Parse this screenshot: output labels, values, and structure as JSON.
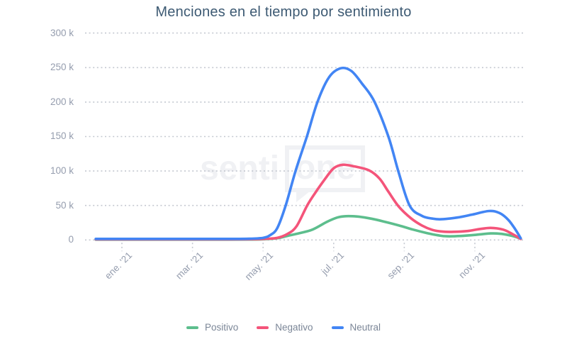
{
  "title": "Menciones en el tiempo por sentimiento",
  "watermark": {
    "prefix": "senti",
    "boxed": "one"
  },
  "colors": {
    "positive": "#5dbe8d",
    "negative": "#f4547a",
    "neutral": "#4285f4",
    "grid": "#c4c8d0",
    "axis_text": "#959dae",
    "title_text": "#3d5a73",
    "legend_text": "#7b8697",
    "watermark": "#f0f1f4",
    "background": "#ffffff"
  },
  "chart_data": {
    "type": "line",
    "title": "Menciones en el tiempo por sentimiento",
    "xlabel": "",
    "ylabel": "",
    "y_unit": "thousands of mentions (k)",
    "x_unit": "months relative to ene. '21 tick",
    "ylim": [
      0,
      300
    ],
    "xlim_months": [
      -0.74,
      11.3
    ],
    "grid": "horizontal-dotted",
    "legend_position": "bottom-center",
    "y_ticks": [
      {
        "label": "300 k",
        "value": 300
      },
      {
        "label": "250 k",
        "value": 250
      },
      {
        "label": "200 k",
        "value": 200
      },
      {
        "label": "150 k",
        "value": 150
      },
      {
        "label": "100 k",
        "value": 100
      },
      {
        "label": "50 k",
        "value": 50
      },
      {
        "label": "0",
        "value": 0
      }
    ],
    "x_ticks": [
      {
        "label": "ene. '21",
        "m": 0
      },
      {
        "label": "mar. '21",
        "m": 2
      },
      {
        "label": "may. '21",
        "m": 4
      },
      {
        "label": "jul. '21",
        "m": 6
      },
      {
        "label": "sep. '21",
        "m": 8
      },
      {
        "label": "nov. '21",
        "m": 10
      }
    ],
    "series": [
      {
        "name": "Positivo",
        "color": "#5dbe8d",
        "peak": {
          "month": "jul. '21",
          "value_k": 34.5
        },
        "points": [
          [
            -0.74,
            0.5
          ],
          [
            0,
            0.5
          ],
          [
            1,
            0.5
          ],
          [
            2,
            0.5
          ],
          [
            3,
            0.5
          ],
          [
            3.6,
            0.6
          ],
          [
            4.0,
            1
          ],
          [
            4.4,
            2.5
          ],
          [
            4.7,
            6
          ],
          [
            5.0,
            9.5
          ],
          [
            5.4,
            15
          ],
          [
            5.8,
            26
          ],
          [
            6.1,
            32.5
          ],
          [
            6.35,
            34.5
          ],
          [
            6.65,
            34
          ],
          [
            7.0,
            31.5
          ],
          [
            7.4,
            27
          ],
          [
            7.85,
            21
          ],
          [
            8.25,
            15
          ],
          [
            8.65,
            9.8
          ],
          [
            8.95,
            6.8
          ],
          [
            9.2,
            5.3
          ],
          [
            9.6,
            5.8
          ],
          [
            10.0,
            7.3
          ],
          [
            10.45,
            9.5
          ],
          [
            10.75,
            8.8
          ],
          [
            11.05,
            6
          ],
          [
            11.3,
            2
          ]
        ]
      },
      {
        "name": "Negativo",
        "color": "#f4547a",
        "peak": {
          "month": "jul. '21",
          "value_k": 109
        },
        "points": [
          [
            -0.74,
            0.9
          ],
          [
            0,
            0.9
          ],
          [
            1,
            0.9
          ],
          [
            2,
            0.9
          ],
          [
            3,
            0.9
          ],
          [
            3.6,
            1
          ],
          [
            4.0,
            1.5
          ],
          [
            4.4,
            3
          ],
          [
            4.7,
            9
          ],
          [
            4.95,
            20
          ],
          [
            5.25,
            50
          ],
          [
            5.5,
            70
          ],
          [
            5.75,
            88
          ],
          [
            6.0,
            104
          ],
          [
            6.26,
            109
          ],
          [
            6.6,
            106.5
          ],
          [
            7.0,
            101
          ],
          [
            7.3,
            89
          ],
          [
            7.55,
            70
          ],
          [
            7.85,
            48
          ],
          [
            8.2,
            31
          ],
          [
            8.5,
            21
          ],
          [
            8.8,
            14.5
          ],
          [
            9.1,
            12
          ],
          [
            9.4,
            11.8
          ],
          [
            9.8,
            13
          ],
          [
            10.1,
            15.5
          ],
          [
            10.45,
            17.5
          ],
          [
            10.8,
            15
          ],
          [
            11.05,
            9
          ],
          [
            11.3,
            1.5
          ]
        ]
      },
      {
        "name": "Neutral",
        "color": "#4285f4",
        "peak": {
          "month": "jul. '21",
          "value_k": 249
        },
        "points": [
          [
            -0.74,
            1.5
          ],
          [
            0,
            1.5
          ],
          [
            1,
            1.5
          ],
          [
            2,
            1.5
          ],
          [
            3,
            1.5
          ],
          [
            3.6,
            1.7
          ],
          [
            4.0,
            3
          ],
          [
            4.2,
            7
          ],
          [
            4.4,
            17
          ],
          [
            4.64,
            50
          ],
          [
            4.92,
            100
          ],
          [
            5.24,
            150
          ],
          [
            5.54,
            200
          ],
          [
            5.87,
            236
          ],
          [
            6.2,
            249
          ],
          [
            6.5,
            245
          ],
          [
            6.8,
            227
          ],
          [
            7.15,
            201
          ],
          [
            7.55,
            150
          ],
          [
            7.83,
            100
          ],
          [
            8.15,
            50
          ],
          [
            8.5,
            35
          ],
          [
            8.8,
            31
          ],
          [
            9.05,
            30
          ],
          [
            9.5,
            32.5
          ],
          [
            9.9,
            36.5
          ],
          [
            10.4,
            42
          ],
          [
            10.7,
            39
          ],
          [
            10.95,
            29
          ],
          [
            11.15,
            15
          ],
          [
            11.3,
            2.5
          ]
        ]
      }
    ]
  }
}
